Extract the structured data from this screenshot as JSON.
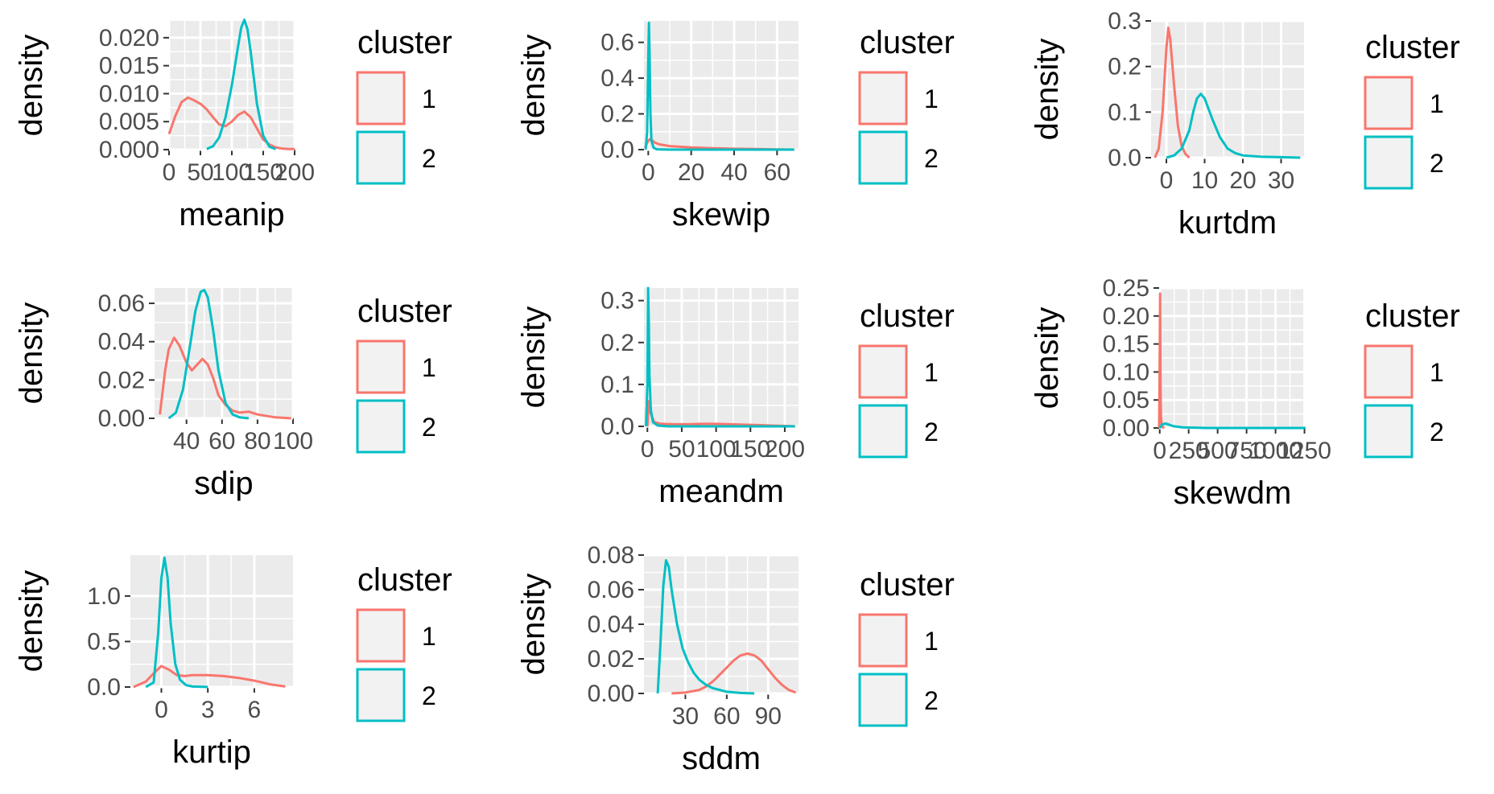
{
  "colors": {
    "cluster_1": "#F8766D",
    "cluster_2": "#00BFC4",
    "panel_background": "#EBEBEB",
    "gridline": "#FFFFFF",
    "legend_key_fill": "#F2F2F2",
    "tick_text": "#4D4D4D"
  },
  "chart_data": [
    {
      "type": "line",
      "xlabel": "meanip",
      "ylabel": "density",
      "xlim": [
        0,
        200
      ],
      "ylim": [
        0,
        0.023
      ],
      "x_ticks": [
        0,
        50,
        100,
        150,
        200
      ],
      "x_tick_labels": [
        "0",
        "50",
        "100",
        "150",
        "200"
      ],
      "y_ticks": [
        0.0,
        0.005,
        0.01,
        0.015,
        0.02
      ],
      "y_tick_labels": [
        "0.000",
        "0.005",
        "0.010",
        "0.015",
        "0.020"
      ],
      "legend": {
        "title": "cluster",
        "labels": [
          "1",
          "2"
        ],
        "position": "right"
      },
      "series": [
        {
          "name": "1",
          "color": "#F8766D",
          "x": [
            0,
            10,
            20,
            30,
            40,
            50,
            60,
            70,
            80,
            90,
            100,
            110,
            120,
            130,
            140,
            150,
            160,
            170,
            180,
            190,
            200
          ],
          "y": [
            0.0028,
            0.006,
            0.0085,
            0.0093,
            0.0088,
            0.0082,
            0.0072,
            0.0058,
            0.0045,
            0.0042,
            0.005,
            0.0062,
            0.0068,
            0.0058,
            0.0038,
            0.0018,
            0.0009,
            0.0004,
            0.0002,
            0.0001,
            0.0001
          ]
        },
        {
          "name": "2",
          "color": "#00BFC4",
          "x": [
            60,
            70,
            80,
            90,
            100,
            110,
            115,
            120,
            125,
            130,
            140,
            150,
            160,
            170
          ],
          "y": [
            0.0001,
            0.0006,
            0.0022,
            0.0058,
            0.0115,
            0.0185,
            0.0218,
            0.0232,
            0.0215,
            0.0175,
            0.0082,
            0.0025,
            0.0005,
            0.0001
          ]
        }
      ]
    },
    {
      "type": "line",
      "xlabel": "skewip",
      "ylabel": "density",
      "xlim": [
        -2,
        70
      ],
      "ylim": [
        0,
        0.72
      ],
      "x_ticks": [
        0,
        20,
        40,
        60
      ],
      "x_tick_labels": [
        "0",
        "20",
        "40",
        "60"
      ],
      "y_ticks": [
        0.0,
        0.2,
        0.4,
        0.6
      ],
      "y_tick_labels": [
        "0.0",
        "0.2",
        "0.4",
        "0.6"
      ],
      "legend": {
        "title": "cluster",
        "labels": [
          "1",
          "2"
        ],
        "position": "right"
      },
      "series": [
        {
          "name": "1",
          "color": "#F8766D",
          "x": [
            -1.5,
            0,
            1,
            2,
            3,
            5,
            10,
            20,
            30,
            40,
            50,
            60,
            68
          ],
          "y": [
            0.01,
            0.05,
            0.06,
            0.05,
            0.04,
            0.03,
            0.02,
            0.012,
            0.008,
            0.005,
            0.003,
            0.001,
            0.0
          ]
        },
        {
          "name": "2",
          "color": "#00BFC4",
          "x": [
            -1.2,
            -0.5,
            0,
            0.3,
            0.6,
            1.0,
            1.5,
            2.5,
            4,
            10,
            68
          ],
          "y": [
            0.0,
            0.1,
            0.5,
            0.71,
            0.55,
            0.2,
            0.05,
            0.01,
            0.002,
            0.0,
            0.0
          ]
        }
      ]
    },
    {
      "type": "line",
      "xlabel": "kurtdm",
      "ylabel": "density",
      "xlim": [
        -4,
        36
      ],
      "ylim": [
        0,
        0.3
      ],
      "x_ticks": [
        0,
        10,
        20,
        30
      ],
      "x_tick_labels": [
        "0",
        "10",
        "20",
        "30"
      ],
      "y_ticks": [
        0.0,
        0.1,
        0.2,
        0.3
      ],
      "y_tick_labels": [
        "0.0",
        "0.1",
        "0.2",
        "0.3"
      ],
      "legend": {
        "title": "cluster",
        "labels": [
          "1",
          "2"
        ],
        "position": "right"
      },
      "series": [
        {
          "name": "1",
          "color": "#F8766D",
          "x": [
            -3,
            -2,
            -1,
            0,
            0.5,
            1,
            2,
            3,
            4,
            5,
            6
          ],
          "y": [
            0.0,
            0.02,
            0.1,
            0.24,
            0.285,
            0.26,
            0.16,
            0.07,
            0.025,
            0.008,
            0.0
          ]
        },
        {
          "name": "2",
          "color": "#00BFC4",
          "x": [
            0,
            2,
            4,
            6,
            7,
            8,
            9,
            10,
            12,
            14,
            16,
            18,
            20,
            25,
            30,
            35
          ],
          "y": [
            0.0,
            0.005,
            0.02,
            0.06,
            0.1,
            0.13,
            0.14,
            0.13,
            0.085,
            0.045,
            0.02,
            0.01,
            0.005,
            0.002,
            0.001,
            0.0
          ]
        }
      ]
    },
    {
      "type": "line",
      "xlabel": "sdip",
      "ylabel": "density",
      "xlim": [
        22,
        100
      ],
      "ylim": [
        0,
        0.068
      ],
      "x_ticks": [
        40,
        60,
        80,
        100
      ],
      "x_tick_labels": [
        "40",
        "60",
        "80",
        "100"
      ],
      "y_ticks": [
        0.0,
        0.02,
        0.04,
        0.06
      ],
      "y_tick_labels": [
        "0.00",
        "0.02",
        "0.04",
        "0.06"
      ],
      "legend": {
        "title": "cluster",
        "labels": [
          "1",
          "2"
        ],
        "position": "right"
      },
      "series": [
        {
          "name": "1",
          "color": "#F8766D",
          "x": [
            25,
            28,
            30,
            33,
            36,
            40,
            43,
            46,
            49,
            52,
            55,
            58,
            62,
            66,
            70,
            75,
            80,
            90,
            99
          ],
          "y": [
            0.002,
            0.025,
            0.036,
            0.042,
            0.038,
            0.029,
            0.025,
            0.028,
            0.031,
            0.028,
            0.021,
            0.012,
            0.007,
            0.004,
            0.003,
            0.0035,
            0.002,
            0.0005,
            0.0
          ]
        },
        {
          "name": "2",
          "color": "#00BFC4",
          "x": [
            30,
            34,
            38,
            42,
            45,
            48,
            50,
            52,
            55,
            58,
            62,
            66,
            70,
            75
          ],
          "y": [
            0.0,
            0.003,
            0.015,
            0.038,
            0.056,
            0.066,
            0.067,
            0.063,
            0.046,
            0.025,
            0.008,
            0.002,
            0.0005,
            0.0
          ]
        }
      ]
    },
    {
      "type": "line",
      "xlabel": "meandm",
      "ylabel": "density",
      "xlim": [
        -5,
        220
      ],
      "ylim": [
        0,
        0.33
      ],
      "x_ticks": [
        0,
        50,
        100,
        150,
        200
      ],
      "x_tick_labels": [
        "0",
        "50",
        "100",
        "150",
        "200"
      ],
      "y_ticks": [
        0.0,
        0.1,
        0.2,
        0.3
      ],
      "y_tick_labels": [
        "0.0",
        "0.1",
        "0.2",
        "0.3"
      ],
      "legend": {
        "title": "cluster",
        "labels": [
          "1",
          "2"
        ],
        "position": "right"
      },
      "series": [
        {
          "name": "1",
          "color": "#F8766D",
          "x": [
            0,
            2,
            5,
            10,
            20,
            40,
            60,
            80,
            100,
            120,
            140,
            160,
            180,
            200,
            215
          ],
          "y": [
            0.0,
            0.06,
            0.03,
            0.01,
            0.006,
            0.005,
            0.005,
            0.006,
            0.006,
            0.005,
            0.004,
            0.003,
            0.002,
            0.001,
            0.0
          ]
        },
        {
          "name": "2",
          "color": "#00BFC4",
          "x": [
            -2,
            0,
            1,
            2,
            3,
            5,
            8,
            15,
            30,
            215
          ],
          "y": [
            0.0,
            0.1,
            0.33,
            0.25,
            0.12,
            0.04,
            0.01,
            0.002,
            0.0,
            0.0
          ]
        }
      ]
    },
    {
      "type": "line",
      "xlabel": "skewdm",
      "ylabel": "density",
      "xlim": [
        -5,
        1260
      ],
      "ylim": [
        0,
        0.25
      ],
      "x_ticks": [
        0,
        250,
        500,
        750,
        1000,
        1250
      ],
      "x_tick_labels": [
        "0",
        "250",
        "500",
        "750",
        "1000",
        "1250"
      ],
      "y_ticks": [
        0.0,
        0.05,
        0.1,
        0.15,
        0.2,
        0.25
      ],
      "y_tick_labels": [
        "0.00",
        "0.05",
        "0.10",
        "0.15",
        "0.20",
        "0.25"
      ],
      "legend": {
        "title": "cluster",
        "labels": [
          "1",
          "2"
        ],
        "position": "right"
      },
      "series": [
        {
          "name": "1",
          "color": "#F8766D",
          "x": [
            -5,
            0,
            3,
            6,
            10,
            20,
            40
          ],
          "y": [
            0.0,
            0.12,
            0.24,
            0.1,
            0.02,
            0.002,
            0.0
          ]
        },
        {
          "name": "2",
          "color": "#00BFC4",
          "x": [
            0,
            20,
            50,
            80,
            120,
            200,
            400,
            800,
            1260
          ],
          "y": [
            0.0,
            0.006,
            0.008,
            0.006,
            0.003,
            0.001,
            0.0,
            0.0,
            0.0
          ]
        }
      ]
    },
    {
      "type": "line",
      "xlabel": "kurtip",
      "ylabel": "density",
      "xlim": [
        -2,
        8.5
      ],
      "ylim": [
        0,
        1.45
      ],
      "x_ticks": [
        0,
        3,
        6
      ],
      "x_tick_labels": [
        "0",
        "3",
        "6"
      ],
      "y_ticks": [
        0.0,
        0.5,
        1.0
      ],
      "y_tick_labels": [
        "0.0",
        "0.5",
        "1.0"
      ],
      "legend": {
        "title": "cluster",
        "labels": [
          "1",
          "2"
        ],
        "position": "right"
      },
      "series": [
        {
          "name": "1",
          "color": "#F8766D",
          "x": [
            -1.8,
            -1,
            -0.5,
            0,
            0.5,
            1,
            1.5,
            2,
            3,
            4,
            5,
            6,
            7,
            8
          ],
          "y": [
            0.0,
            0.06,
            0.15,
            0.23,
            0.19,
            0.13,
            0.12,
            0.13,
            0.13,
            0.12,
            0.1,
            0.07,
            0.03,
            0.005
          ]
        },
        {
          "name": "2",
          "color": "#00BFC4",
          "x": [
            -1,
            -0.5,
            -0.2,
            0,
            0.2,
            0.4,
            0.6,
            0.9,
            1.2,
            1.6,
            2,
            3
          ],
          "y": [
            0.0,
            0.05,
            0.6,
            1.2,
            1.42,
            1.2,
            0.7,
            0.25,
            0.08,
            0.02,
            0.005,
            0.0
          ]
        }
      ]
    },
    {
      "type": "line",
      "xlabel": "sddm",
      "ylabel": "density",
      "xlim": [
        0,
        112
      ],
      "ylim": [
        0,
        0.08
      ],
      "x_ticks": [
        30,
        60,
        90
      ],
      "x_tick_labels": [
        "30",
        "60",
        "90"
      ],
      "y_ticks": [
        0.0,
        0.02,
        0.04,
        0.06,
        0.08
      ],
      "y_tick_labels": [
        "0.00",
        "0.02",
        "0.04",
        "0.06",
        "0.08"
      ],
      "legend": {
        "title": "cluster",
        "labels": [
          "1",
          "2"
        ],
        "position": "right"
      },
      "series": [
        {
          "name": "1",
          "color": "#F8766D",
          "x": [
            20,
            30,
            40,
            45,
            50,
            55,
            60,
            65,
            70,
            75,
            80,
            85,
            90,
            95,
            100,
            105,
            110
          ],
          "y": [
            0.0,
            0.0005,
            0.002,
            0.004,
            0.007,
            0.011,
            0.015,
            0.019,
            0.022,
            0.023,
            0.022,
            0.019,
            0.014,
            0.009,
            0.005,
            0.002,
            0.0005
          ]
        },
        {
          "name": "2",
          "color": "#00BFC4",
          "x": [
            10,
            12,
            14,
            16,
            18,
            20,
            24,
            28,
            32,
            36,
            40,
            45,
            50,
            60,
            70,
            80
          ],
          "y": [
            0.0,
            0.03,
            0.062,
            0.077,
            0.073,
            0.06,
            0.04,
            0.026,
            0.018,
            0.012,
            0.008,
            0.005,
            0.003,
            0.001,
            0.0003,
            0.0
          ]
        }
      ]
    }
  ]
}
